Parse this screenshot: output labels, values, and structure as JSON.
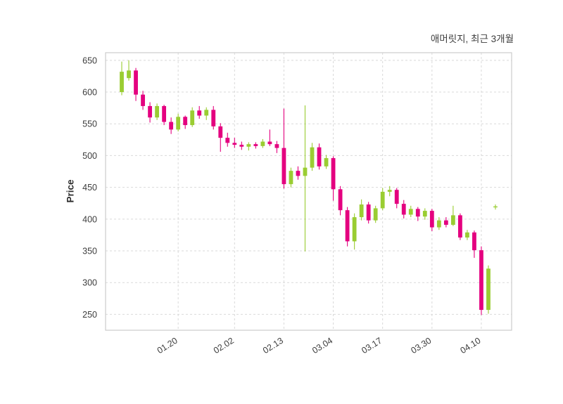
{
  "chart_data": {
    "type": "candlestick",
    "title": "애머릿지, 최근 3개월",
    "ylabel": "Price",
    "ylim": [
      225,
      662
    ],
    "yticks": [
      250,
      300,
      350,
      400,
      450,
      500,
      550,
      600,
      650
    ],
    "xticks": [
      {
        "index": 8,
        "label": "01.20"
      },
      {
        "index": 16,
        "label": "02.02"
      },
      {
        "index": 23,
        "label": "02.13"
      },
      {
        "index": 30,
        "label": "03.04"
      },
      {
        "index": 37,
        "label": "03.17"
      },
      {
        "index": 44,
        "label": "03.30"
      },
      {
        "index": 51,
        "label": "04.10"
      }
    ],
    "grid": "dashed",
    "legend": "none",
    "colors": {
      "up": "#9acd32",
      "down": "#e4007f",
      "grid": "#d9d9d9",
      "border": "#cccccc",
      "text": "#3d3d3d"
    },
    "candles": [
      [
        600,
        648,
        595,
        632
      ],
      [
        622,
        650,
        618,
        634
      ],
      [
        634,
        638,
        586,
        596
      ],
      [
        596,
        602,
        572,
        578
      ],
      [
        578,
        584,
        552,
        560
      ],
      [
        560,
        582,
        556,
        578
      ],
      [
        578,
        580,
        548,
        553
      ],
      [
        553,
        560,
        534,
        541
      ],
      [
        541,
        566,
        538,
        561
      ],
      [
        561,
        563,
        542,
        548
      ],
      [
        548,
        576,
        545,
        571
      ],
      [
        571,
        578,
        558,
        563
      ],
      [
        563,
        576,
        556,
        572
      ],
      [
        572,
        578,
        541,
        546
      ],
      [
        546,
        551,
        506,
        528
      ],
      [
        528,
        536,
        514,
        520
      ],
      [
        520,
        528,
        512,
        517
      ],
      [
        517,
        522,
        509,
        514
      ],
      [
        514,
        521,
        508,
        518
      ],
      [
        518,
        521,
        511,
        515
      ],
      [
        515,
        526,
        512,
        522
      ],
      [
        522,
        541,
        515,
        518
      ],
      [
        518,
        523,
        504,
        512
      ],
      [
        512,
        574,
        448,
        455
      ],
      [
        455,
        481,
        450,
        476
      ],
      [
        476,
        483,
        462,
        468
      ],
      [
        468,
        579,
        349,
        481
      ],
      [
        481,
        520,
        476,
        513
      ],
      [
        513,
        519,
        478,
        483
      ],
      [
        483,
        501,
        479,
        496
      ],
      [
        496,
        499,
        429,
        447
      ],
      [
        447,
        452,
        406,
        414
      ],
      [
        414,
        419,
        357,
        365
      ],
      [
        365,
        409,
        352,
        403
      ],
      [
        403,
        431,
        398,
        423
      ],
      [
        423,
        427,
        393,
        398
      ],
      [
        398,
        421,
        394,
        417
      ],
      [
        417,
        449,
        414,
        443
      ],
      [
        443,
        452,
        436,
        446
      ],
      [
        446,
        449,
        417,
        424
      ],
      [
        424,
        430,
        401,
        407
      ],
      [
        407,
        421,
        403,
        416
      ],
      [
        416,
        419,
        397,
        404
      ],
      [
        404,
        417,
        399,
        413
      ],
      [
        413,
        416,
        381,
        387
      ],
      [
        387,
        403,
        383,
        398
      ],
      [
        398,
        403,
        387,
        391
      ],
      [
        391,
        421,
        389,
        406
      ],
      [
        406,
        409,
        367,
        371
      ],
      [
        371,
        383,
        367,
        379
      ],
      [
        379,
        382,
        339,
        351
      ],
      [
        351,
        357,
        249,
        257
      ],
      [
        257,
        327,
        251,
        322
      ],
      [
        419,
        423,
        415,
        420
      ]
    ]
  }
}
